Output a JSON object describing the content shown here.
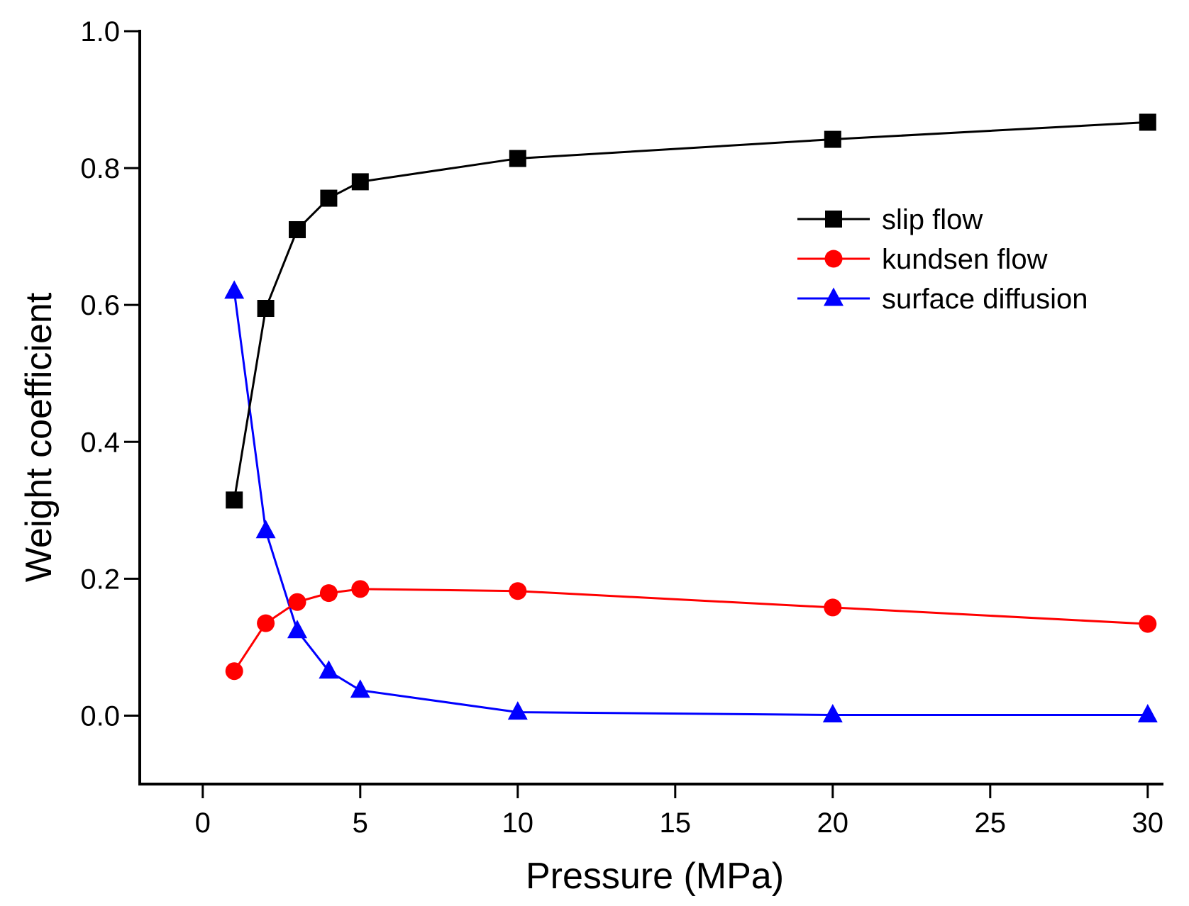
{
  "chart_data": {
    "type": "line",
    "title": "",
    "xlabel": "Pressure (MPa)",
    "ylabel": "Weight coefficient",
    "xlim": [
      -2,
      30.5
    ],
    "ylim": [
      -0.1,
      1.0
    ],
    "xticks": [
      0,
      5,
      10,
      15,
      20,
      25,
      30
    ],
    "xtick_labels": [
      "0",
      "5",
      "10",
      "15",
      "20",
      "25",
      "30"
    ],
    "yticks": [
      0.0,
      0.2,
      0.4,
      0.6,
      0.8,
      1.0
    ],
    "ytick_labels": [
      "0.0",
      "0.2",
      "0.4",
      "0.6",
      "0.8",
      "1.0"
    ],
    "grid": false,
    "legend_position": "right",
    "x": [
      1,
      2,
      3,
      4,
      5,
      10,
      20,
      30
    ],
    "series": [
      {
        "name": "slip flow",
        "color": "#000000",
        "marker": "square",
        "values": [
          0.315,
          0.595,
          0.71,
          0.756,
          0.78,
          0.814,
          0.842,
          0.867
        ]
      },
      {
        "name": "kundsen flow",
        "color": "#ff0000",
        "marker": "circle",
        "values": [
          0.065,
          0.135,
          0.166,
          0.179,
          0.185,
          0.182,
          0.158,
          0.134
        ]
      },
      {
        "name": "surface diffusion",
        "color": "#0000ff",
        "marker": "triangle",
        "values": [
          0.62,
          0.27,
          0.124,
          0.065,
          0.037,
          0.005,
          0.001,
          0.001
        ]
      }
    ]
  }
}
